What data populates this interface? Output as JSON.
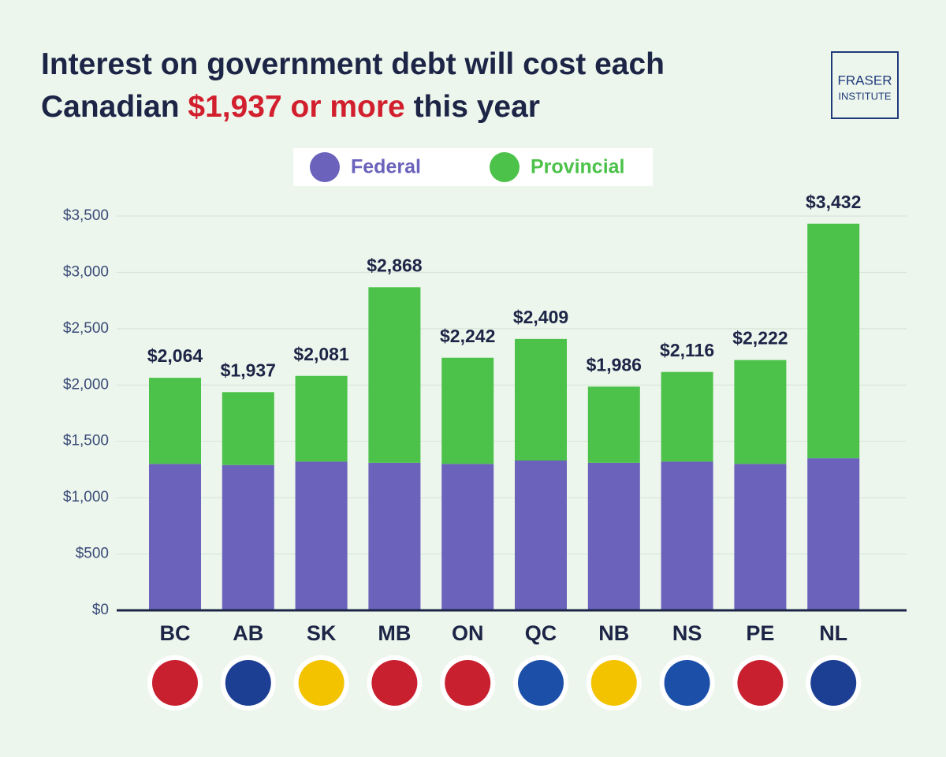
{
  "chart_data": {
    "type": "stacked_bar",
    "title": [
      "Interest on government debt will cost each",
      "Canadian",
      "$1,937 or more",
      "this year"
    ],
    "logo": [
      "FRASER",
      "INSTITUTE"
    ],
    "categories": [
      "BC",
      "AB",
      "SK",
      "MB",
      "ON",
      "QC",
      "NB",
      "NS",
      "PE",
      "NL"
    ],
    "series": [
      {
        "name": "Federal",
        "color": "#6a62bb",
        "values": [
          1300,
          1290,
          1320,
          1310,
          1300,
          1330,
          1310,
          1320,
          1300,
          1350
        ]
      },
      {
        "name": "Provincial",
        "color": "#4cc24a",
        "values": [
          764,
          647,
          761,
          1558,
          942,
          1079,
          676,
          796,
          922,
          2082
        ]
      }
    ],
    "totals": {
      "values": [
        2064,
        1937,
        2081,
        2868,
        2242,
        2409,
        1986,
        2116,
        2222,
        3432
      ],
      "value_labels": [
        "$2,064",
        "$1,937",
        "$2,081",
        "$2,868",
        "$2,242",
        "$2,409",
        "$1,986",
        "$2,116",
        "$2,222",
        "$3,432"
      ]
    },
    "ylim": [
      0,
      3500
    ],
    "yticks": [
      {
        "value": 0,
        "label": "$0"
      },
      {
        "value": 500,
        "label": "$500"
      },
      {
        "value": 1000,
        "label": "$1,000"
      },
      {
        "value": 1500,
        "label": "$1,500"
      },
      {
        "value": 2000,
        "label": "$2,000"
      },
      {
        "value": 2500,
        "label": "$2,500"
      },
      {
        "value": 3000,
        "label": "$3,000"
      },
      {
        "value": 3500,
        "label": "$3,500"
      }
    ],
    "grid": true
  }
}
